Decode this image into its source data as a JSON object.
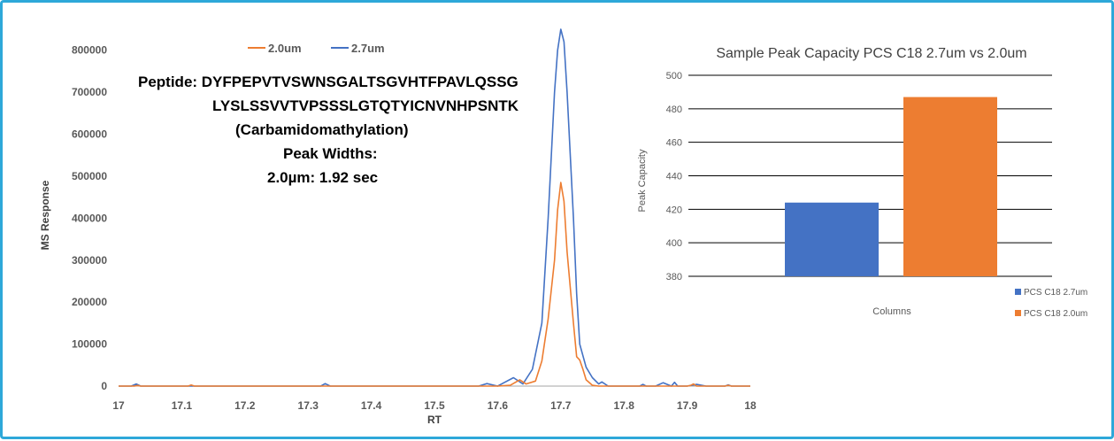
{
  "chart_data": [
    {
      "type": "line",
      "title": "",
      "xlabel": "RT",
      "ylabel": "MS Response",
      "xlim": [
        17,
        18
      ],
      "ylim": [
        0,
        850000
      ],
      "x_ticks": [
        "17",
        "17.1",
        "17.2",
        "17.3",
        "17.4",
        "17.5",
        "17.6",
        "17.7",
        "17.8",
        "17.9",
        "18"
      ],
      "y_ticks": [
        "0",
        "100000",
        "200000",
        "300000",
        "400000",
        "500000",
        "600000",
        "700000",
        "800000"
      ],
      "legend": "top-left",
      "annotation": {
        "line1": "Peptide: DYFPEPVTVSWNSGALTSGVHTFPAVLQSSG",
        "line2": "LYSLSSVVTVPSSSLGTQTYICNVNHPSNTK",
        "line3": "(Carbamidomathylation)",
        "line4": "Peak Widths:",
        "line5": "2.0µm: 1.92 sec"
      },
      "series": [
        {
          "name": "2.0um",
          "color": "#ED7D31",
          "x": [
            17.0,
            17.025,
            17.03,
            17.035,
            17.1,
            17.11,
            17.115,
            17.12,
            17.5,
            17.6,
            17.62,
            17.635,
            17.645,
            17.66,
            17.67,
            17.68,
            17.69,
            17.695,
            17.7,
            17.705,
            17.71,
            17.72,
            17.725,
            17.73,
            17.735,
            17.74,
            17.75,
            17.76,
            17.9,
            17.905,
            17.91,
            17.915,
            17.95,
            17.96,
            17.965,
            17.97,
            18.0
          ],
          "y": [
            0,
            0,
            1500,
            0,
            0,
            0,
            2500,
            0,
            0,
            0,
            2000,
            15000,
            5000,
            12000,
            60000,
            160000,
            300000,
            420000,
            485000,
            440000,
            320000,
            150000,
            70000,
            62000,
            40000,
            15000,
            2000,
            0,
            0,
            1500,
            5000,
            0,
            0,
            0,
            2000,
            0,
            0
          ]
        },
        {
          "name": "2.7um",
          "color": "#4472C4",
          "x": [
            17.0,
            17.02,
            17.028,
            17.035,
            17.32,
            17.327,
            17.335,
            17.5,
            17.57,
            17.583,
            17.6,
            17.61,
            17.625,
            17.64,
            17.655,
            17.67,
            17.68,
            17.69,
            17.695,
            17.7,
            17.705,
            17.71,
            17.72,
            17.725,
            17.73,
            17.74,
            17.75,
            17.76,
            17.765,
            17.775,
            17.8,
            17.825,
            17.83,
            17.835,
            17.85,
            17.862,
            17.875,
            17.88,
            17.885,
            17.9,
            17.915,
            17.93,
            17.96,
            17.965,
            17.97,
            18.0
          ],
          "y": [
            0,
            0,
            5000,
            0,
            0,
            6000,
            0,
            0,
            0,
            6000,
            0,
            8000,
            20000,
            5000,
            40000,
            150000,
            400000,
            700000,
            800000,
            850000,
            820000,
            700000,
            400000,
            220000,
            100000,
            45000,
            20000,
            5000,
            10000,
            0,
            0,
            0,
            4000,
            0,
            0,
            8000,
            0,
            9000,
            0,
            0,
            4000,
            0,
            0,
            3000,
            0,
            0
          ]
        }
      ]
    },
    {
      "type": "bar",
      "title": "Sample Peak Capacity PCS C18 2.7um vs 2.0um",
      "xlabel": "Columns",
      "ylabel": "Peak Capacity",
      "ylim": [
        380,
        500
      ],
      "y_ticks": [
        "380",
        "400",
        "420",
        "440",
        "460",
        "480",
        "500"
      ],
      "grid": true,
      "legend": "bottom-right",
      "series": [
        {
          "name": "PCS C18 2.7um",
          "color": "#4472C4",
          "values": [
            424
          ]
        },
        {
          "name": "PCS C18 2.0um",
          "color": "#ED7D31",
          "values": [
            487
          ]
        }
      ]
    }
  ]
}
